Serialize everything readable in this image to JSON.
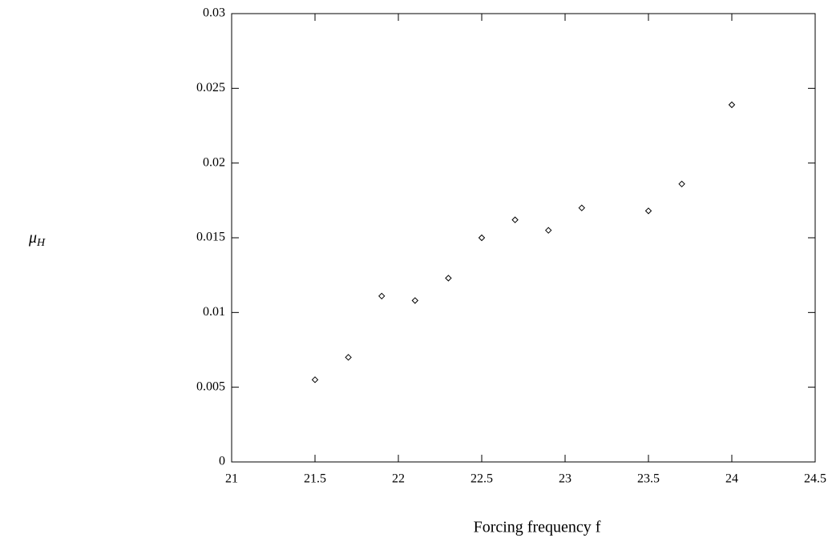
{
  "chart_data": {
    "type": "scatter",
    "xlabel": "Forcing frequency f",
    "ylabel": {
      "symbol": "μ",
      "subscript": "H"
    },
    "x": [
      21.5,
      21.7,
      21.9,
      22.1,
      22.3,
      22.5,
      22.7,
      22.9,
      23.1,
      23.5,
      23.7,
      24.0
    ],
    "values": [
      0.0055,
      0.007,
      0.0111,
      0.0108,
      0.0123,
      0.015,
      0.0162,
      0.0155,
      0.017,
      0.0168,
      0.0186,
      0.0239
    ],
    "color": "#000000",
    "xlim": [
      21,
      24.5
    ],
    "xticks": [
      21,
      21.5,
      22,
      22.5,
      23,
      23.5,
      24,
      24.5
    ],
    "ylim": [
      0,
      0.03
    ],
    "yticks": [
      0,
      0.005,
      0.01,
      0.015,
      0.02,
      0.025,
      0.03
    ]
  }
}
